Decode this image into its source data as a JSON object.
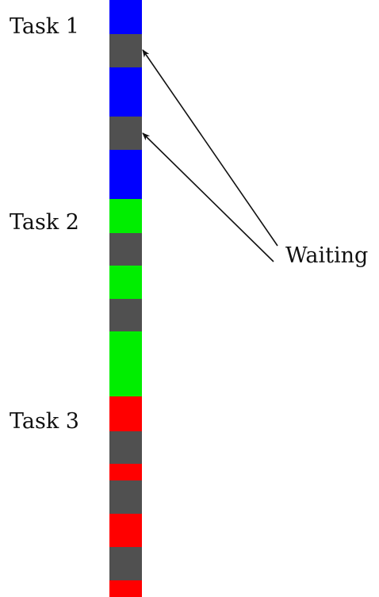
{
  "tasks": [
    {
      "label": "Task 1",
      "color": "#0000ff",
      "segments": [
        "run",
        "wait",
        "run",
        "wait",
        "run"
      ]
    },
    {
      "label": "Task 2",
      "color": "#00ee00",
      "segments": [
        "run",
        "wait",
        "run",
        "wait",
        "run"
      ]
    },
    {
      "label": "Task 3",
      "color": "#ff0000",
      "segments": [
        "run",
        "wait",
        "run",
        "wait",
        "run",
        "wait",
        "run"
      ]
    }
  ],
  "wait_color": "#505050",
  "annotation": {
    "label": "Waiting",
    "points_to": "task1 wait segments"
  }
}
